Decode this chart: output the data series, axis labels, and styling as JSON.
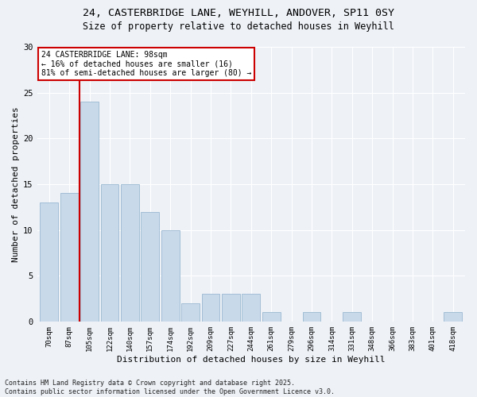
{
  "title1": "24, CASTERBRIDGE LANE, WEYHILL, ANDOVER, SP11 0SY",
  "title2": "Size of property relative to detached houses in Weyhill",
  "xlabel": "Distribution of detached houses by size in Weyhill",
  "ylabel": "Number of detached properties",
  "bin_labels": [
    "70sqm",
    "87sqm",
    "105sqm",
    "122sqm",
    "140sqm",
    "157sqm",
    "174sqm",
    "192sqm",
    "209sqm",
    "227sqm",
    "244sqm",
    "261sqm",
    "279sqm",
    "296sqm",
    "314sqm",
    "331sqm",
    "348sqm",
    "366sqm",
    "383sqm",
    "401sqm",
    "418sqm"
  ],
  "bar_values": [
    13,
    14,
    24,
    15,
    15,
    12,
    10,
    2,
    3,
    3,
    3,
    1,
    0,
    1,
    0,
    1,
    0,
    0,
    0,
    0,
    1
  ],
  "bar_color": "#c8d9ea",
  "bar_edge_color": "#9ab8d0",
  "background_color": "#eef2f7",
  "plot_bg_color": "#eef2f7",
  "grid_color": "#ffffff",
  "annotation_title": "24 CASTERBRIDGE LANE: 98sqm",
  "annotation_line1": "← 16% of detached houses are smaller (16)",
  "annotation_line2": "81% of semi-detached houses are larger (80) →",
  "annotation_box_color": "#ffffff",
  "annotation_border_color": "#cc0000",
  "vline_color": "#cc0000",
  "ylim": [
    0,
    30
  ],
  "yticks": [
    0,
    5,
    10,
    15,
    20,
    25,
    30
  ],
  "footer_line1": "Contains HM Land Registry data © Crown copyright and database right 2025.",
  "footer_line2": "Contains public sector information licensed under the Open Government Licence v3.0.",
  "title_fontsize": 9.5,
  "title2_fontsize": 8.5,
  "label_fontsize": 8,
  "tick_fontsize": 6.5,
  "footer_fontsize": 6,
  "annot_fontsize": 7
}
